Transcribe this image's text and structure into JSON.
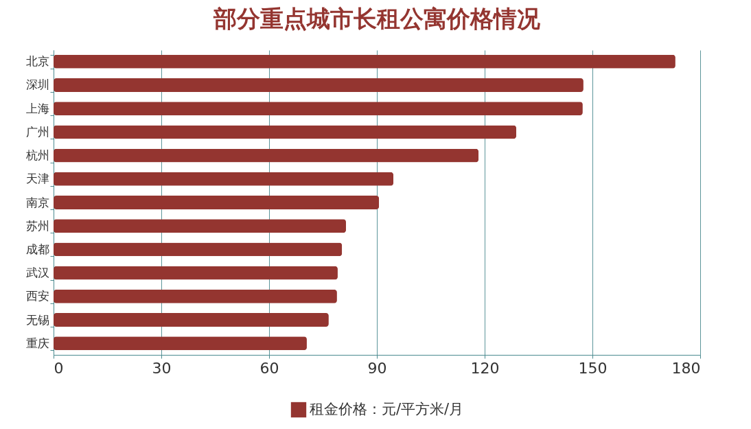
{
  "chart_data": {
    "type": "bar",
    "orientation": "horizontal",
    "title": "部分重点城市长租公寓价格情况",
    "categories": [
      "北京",
      "深圳",
      "上海",
      "广州",
      "杭州",
      "天津",
      "南京",
      "苏州",
      "成都",
      "武汉",
      "西安",
      "无锡",
      "重庆"
    ],
    "series": [
      {
        "name": "租金价格：元/平方米/月",
        "color": "#943530",
        "values": [
          173.1,
          147.5,
          147.3,
          128.8,
          118.3,
          94.6,
          90.6,
          81.4,
          80.3,
          79.1,
          78.9,
          76.6,
          70.5
        ]
      }
    ],
    "xlim": [
      0,
      180
    ],
    "xticks": [
      0,
      30,
      60,
      90,
      120,
      150,
      180
    ],
    "grid": "x",
    "legend": "bottom"
  }
}
